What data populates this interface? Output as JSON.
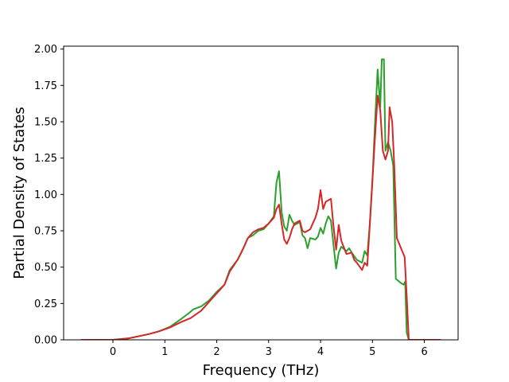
{
  "chart_data": {
    "type": "line",
    "title": "",
    "xlabel": "Frequency (THz)",
    "ylabel": "Partial Density of States",
    "xlim": [
      -0.95,
      6.65
    ],
    "ylim": [
      0.0,
      2.02
    ],
    "xticks": [
      0,
      1,
      2,
      3,
      4,
      5,
      6
    ],
    "yticks": [
      0.0,
      0.25,
      0.5,
      0.75,
      1.0,
      1.25,
      1.5,
      1.75,
      2.0
    ],
    "xtick_labels": [
      "0",
      "1",
      "2",
      "3",
      "4",
      "5",
      "6"
    ],
    "ytick_labels": [
      "0.00",
      "0.25",
      "0.50",
      "0.75",
      "1.00",
      "1.25",
      "1.50",
      "1.75",
      "2.00"
    ],
    "grid": false,
    "legend": "none",
    "series": [
      {
        "color": "#2ca02c",
        "points": [
          [
            -0.6,
            0.0
          ],
          [
            0.0,
            0.0
          ],
          [
            0.15,
            0.005
          ],
          [
            0.3,
            0.01
          ],
          [
            0.5,
            0.025
          ],
          [
            0.7,
            0.04
          ],
          [
            0.9,
            0.06
          ],
          [
            1.1,
            0.09
          ],
          [
            1.3,
            0.14
          ],
          [
            1.45,
            0.18
          ],
          [
            1.55,
            0.21
          ],
          [
            1.7,
            0.23
          ],
          [
            1.85,
            0.27
          ],
          [
            2.0,
            0.33
          ],
          [
            2.15,
            0.38
          ],
          [
            2.25,
            0.48
          ],
          [
            2.4,
            0.55
          ],
          [
            2.5,
            0.62
          ],
          [
            2.6,
            0.7
          ],
          [
            2.7,
            0.72
          ],
          [
            2.8,
            0.75
          ],
          [
            2.9,
            0.76
          ],
          [
            3.0,
            0.8
          ],
          [
            3.1,
            0.85
          ],
          [
            3.15,
            1.08
          ],
          [
            3.2,
            1.16
          ],
          [
            3.25,
            0.88
          ],
          [
            3.3,
            0.78
          ],
          [
            3.35,
            0.75
          ],
          [
            3.4,
            0.86
          ],
          [
            3.45,
            0.82
          ],
          [
            3.5,
            0.79
          ],
          [
            3.6,
            0.81
          ],
          [
            3.65,
            0.72
          ],
          [
            3.7,
            0.7
          ],
          [
            3.75,
            0.63
          ],
          [
            3.8,
            0.7
          ],
          [
            3.9,
            0.69
          ],
          [
            3.95,
            0.71
          ],
          [
            4.0,
            0.77
          ],
          [
            4.05,
            0.73
          ],
          [
            4.1,
            0.8
          ],
          [
            4.15,
            0.85
          ],
          [
            4.2,
            0.82
          ],
          [
            4.25,
            0.65
          ],
          [
            4.3,
            0.49
          ],
          [
            4.35,
            0.6
          ],
          [
            4.4,
            0.64
          ],
          [
            4.5,
            0.61
          ],
          [
            4.55,
            0.63
          ],
          [
            4.6,
            0.6
          ],
          [
            4.7,
            0.55
          ],
          [
            4.8,
            0.53
          ],
          [
            4.85,
            0.61
          ],
          [
            4.9,
            0.58
          ],
          [
            4.95,
            0.8
          ],
          [
            5.0,
            1.1
          ],
          [
            5.05,
            1.5
          ],
          [
            5.1,
            1.86
          ],
          [
            5.15,
            1.6
          ],
          [
            5.18,
            1.93
          ],
          [
            5.22,
            1.93
          ],
          [
            5.25,
            1.3
          ],
          [
            5.3,
            1.36
          ],
          [
            5.35,
            1.3
          ],
          [
            5.4,
            1.2
          ],
          [
            5.45,
            0.42
          ],
          [
            5.55,
            0.39
          ],
          [
            5.6,
            0.38
          ],
          [
            5.63,
            0.4
          ],
          [
            5.66,
            0.05
          ],
          [
            5.7,
            0.0
          ],
          [
            6.3,
            0.0
          ]
        ]
      },
      {
        "color": "#d62728",
        "points": [
          [
            -0.6,
            0.0
          ],
          [
            0.0,
            0.0
          ],
          [
            0.15,
            0.005
          ],
          [
            0.3,
            0.01
          ],
          [
            0.5,
            0.025
          ],
          [
            0.7,
            0.04
          ],
          [
            0.9,
            0.06
          ],
          [
            1.1,
            0.085
          ],
          [
            1.3,
            0.12
          ],
          [
            1.5,
            0.15
          ],
          [
            1.7,
            0.2
          ],
          [
            1.85,
            0.26
          ],
          [
            2.0,
            0.32
          ],
          [
            2.15,
            0.38
          ],
          [
            2.25,
            0.47
          ],
          [
            2.4,
            0.55
          ],
          [
            2.5,
            0.62
          ],
          [
            2.6,
            0.7
          ],
          [
            2.7,
            0.74
          ],
          [
            2.8,
            0.76
          ],
          [
            2.9,
            0.77
          ],
          [
            3.0,
            0.8
          ],
          [
            3.1,
            0.84
          ],
          [
            3.15,
            0.9
          ],
          [
            3.2,
            0.93
          ],
          [
            3.25,
            0.8
          ],
          [
            3.3,
            0.69
          ],
          [
            3.35,
            0.66
          ],
          [
            3.4,
            0.7
          ],
          [
            3.45,
            0.76
          ],
          [
            3.5,
            0.8
          ],
          [
            3.6,
            0.82
          ],
          [
            3.65,
            0.75
          ],
          [
            3.7,
            0.74
          ],
          [
            3.8,
            0.76
          ],
          [
            3.9,
            0.84
          ],
          [
            3.95,
            0.9
          ],
          [
            4.0,
            1.03
          ],
          [
            4.05,
            0.9
          ],
          [
            4.1,
            0.95
          ],
          [
            4.2,
            0.97
          ],
          [
            4.25,
            0.78
          ],
          [
            4.3,
            0.62
          ],
          [
            4.35,
            0.79
          ],
          [
            4.4,
            0.68
          ],
          [
            4.5,
            0.59
          ],
          [
            4.6,
            0.6
          ],
          [
            4.65,
            0.55
          ],
          [
            4.7,
            0.53
          ],
          [
            4.8,
            0.48
          ],
          [
            4.85,
            0.53
          ],
          [
            4.9,
            0.51
          ],
          [
            4.95,
            0.8
          ],
          [
            5.0,
            1.1
          ],
          [
            5.05,
            1.4
          ],
          [
            5.1,
            1.68
          ],
          [
            5.15,
            1.58
          ],
          [
            5.2,
            1.3
          ],
          [
            5.25,
            1.24
          ],
          [
            5.3,
            1.3
          ],
          [
            5.33,
            1.6
          ],
          [
            5.38,
            1.5
          ],
          [
            5.42,
            1.2
          ],
          [
            5.47,
            0.7
          ],
          [
            5.55,
            0.63
          ],
          [
            5.62,
            0.57
          ],
          [
            5.66,
            0.3
          ],
          [
            5.7,
            0.0
          ],
          [
            6.3,
            0.0
          ]
        ]
      }
    ]
  }
}
